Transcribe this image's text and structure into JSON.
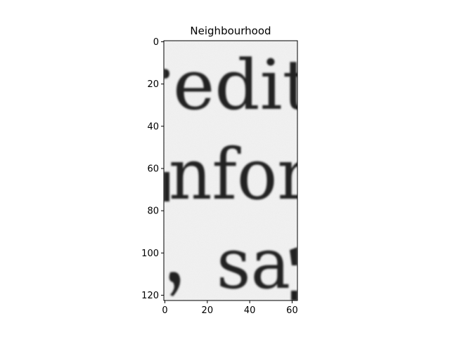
{
  "chart_data": {
    "type": "image",
    "title": "Neighbourhood",
    "xlim": [
      -0.5,
      62.5
    ],
    "ylim": [
      122.5,
      -0.5
    ],
    "x_ticks": [
      0,
      20,
      40,
      60
    ],
    "y_ticks": [
      0,
      20,
      40,
      60,
      80,
      100,
      120
    ],
    "colormap": "gray",
    "image_text": {
      "line1": "edit",
      "line2": "nfor",
      "line3": "sa"
    }
  }
}
